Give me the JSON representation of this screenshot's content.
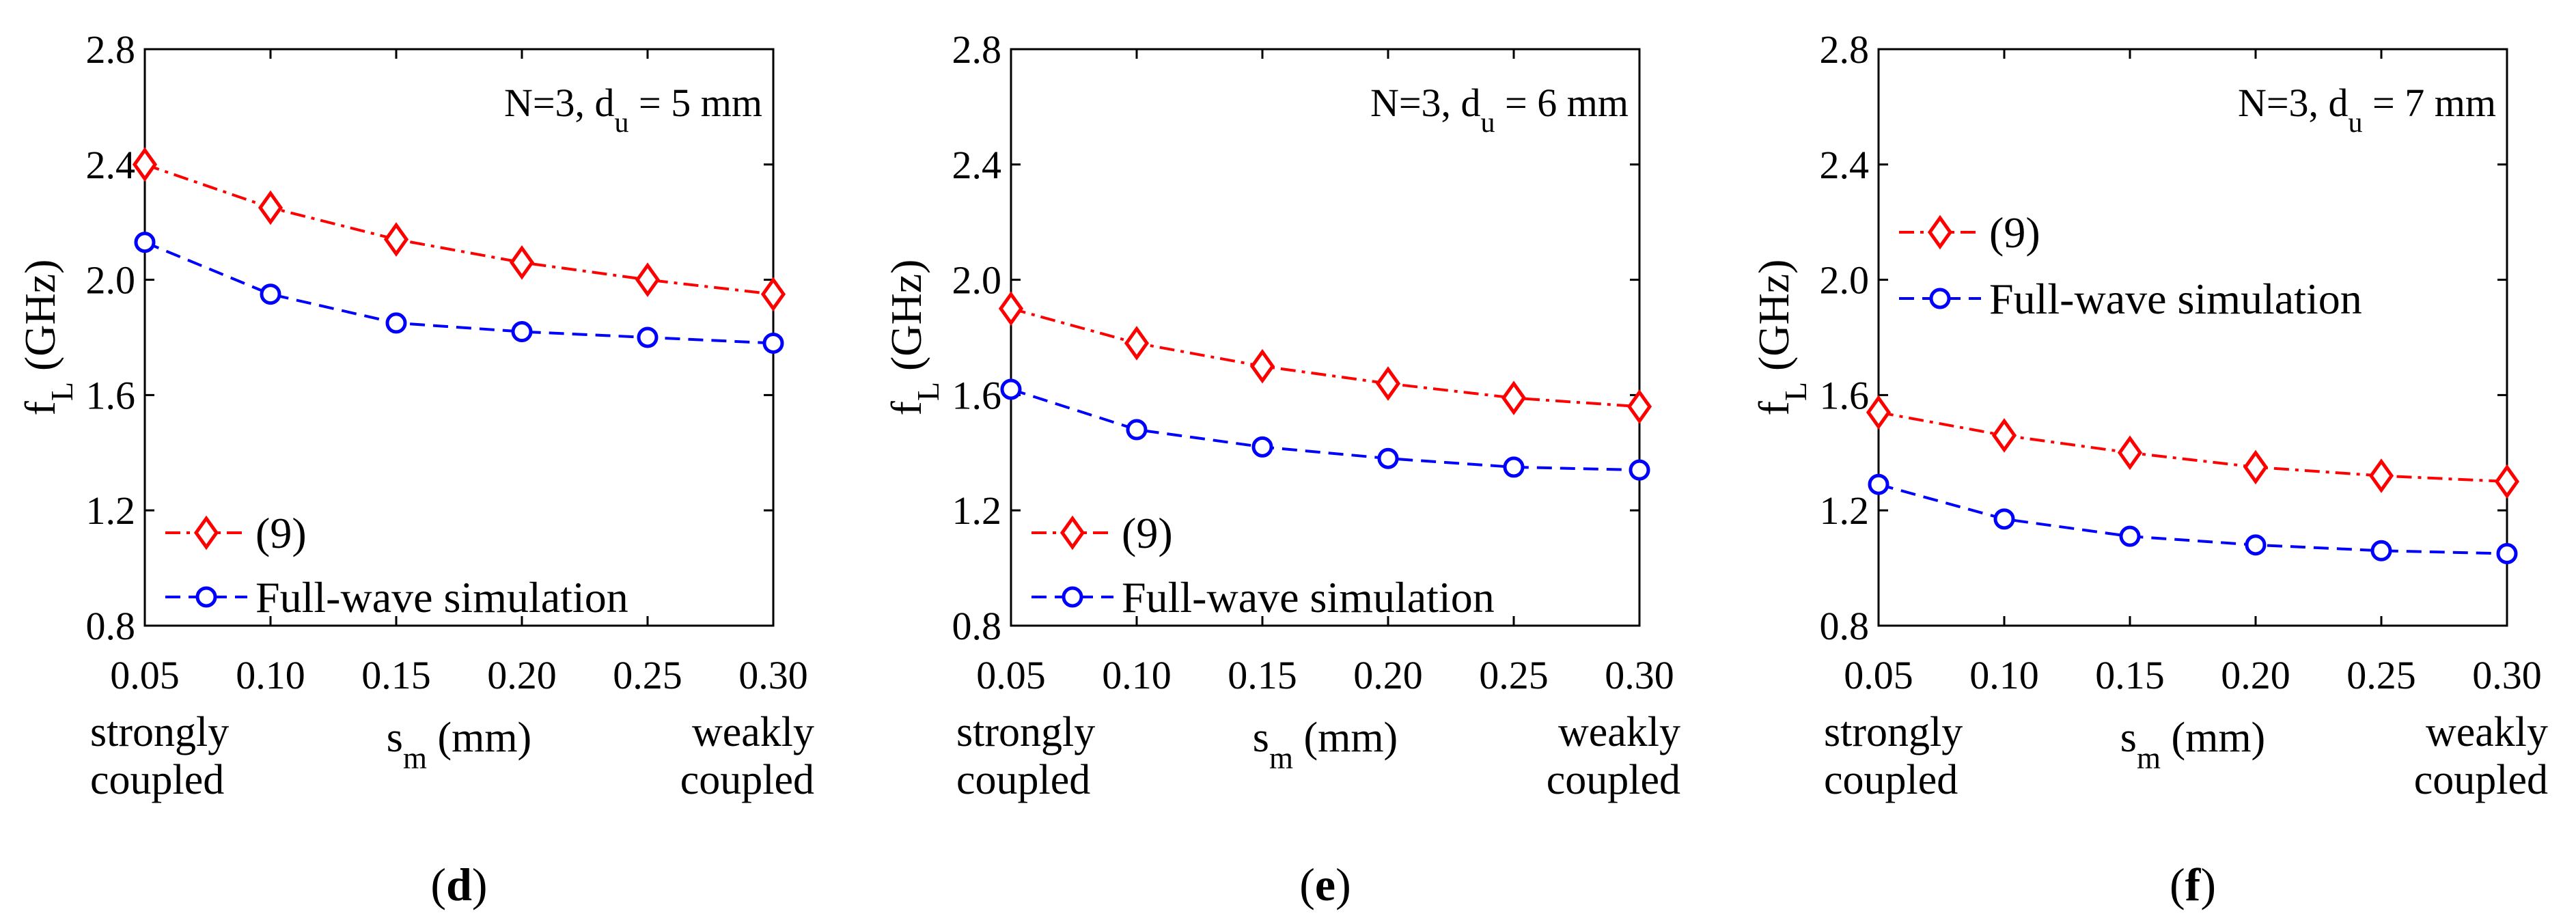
{
  "chart_data": [
    {
      "type": "line",
      "panel_label": "(d)",
      "annotation": {
        "main": "N=3, d",
        "sub": "u",
        "rest": " = 5 mm"
      },
      "ylabel": {
        "main": "f",
        "sub": "L",
        "rest": " (GHz)"
      },
      "xlabel": {
        "main": "s",
        "sub": "m",
        "rest": " (mm)"
      },
      "x_left_note": [
        "strongly",
        "coupled"
      ],
      "x_right_note": [
        "weakly",
        "coupled"
      ],
      "xlim": [
        0.05,
        0.3
      ],
      "ylim": [
        0.8,
        2.8
      ],
      "xticks": [
        "0.05",
        "0.10",
        "0.15",
        "0.20",
        "0.25",
        "0.30"
      ],
      "yticks": [
        "0.8",
        "1.2",
        "1.6",
        "2.0",
        "2.4",
        "2.8"
      ],
      "legend_position": "bottom-left",
      "x": [
        0.05,
        0.1,
        0.15,
        0.2,
        0.25,
        0.3
      ],
      "series": [
        {
          "name": "(9)",
          "color": "#ff0000",
          "marker": "diamond",
          "dash": "dash-dot",
          "values": [
            2.4,
            2.25,
            2.14,
            2.06,
            2.0,
            1.95
          ]
        },
        {
          "name": "Full-wave simulation",
          "color": "#0000ff",
          "marker": "circle",
          "dash": "dashed",
          "values": [
            2.13,
            1.95,
            1.85,
            1.82,
            1.8,
            1.78
          ]
        }
      ]
    },
    {
      "type": "line",
      "panel_label": "(e)",
      "annotation": {
        "main": "N=3, d",
        "sub": "u",
        "rest": " = 6 mm"
      },
      "ylabel": {
        "main": "f",
        "sub": "L",
        "rest": " (GHz)"
      },
      "xlabel": {
        "main": "s",
        "sub": "m",
        "rest": " (mm)"
      },
      "x_left_note": [
        "strongly",
        "coupled"
      ],
      "x_right_note": [
        "weakly",
        "coupled"
      ],
      "xlim": [
        0.05,
        0.3
      ],
      "ylim": [
        0.8,
        2.8
      ],
      "xticks": [
        "0.05",
        "0.10",
        "0.15",
        "0.20",
        "0.25",
        "0.30"
      ],
      "yticks": [
        "0.8",
        "1.2",
        "1.6",
        "2.0",
        "2.4",
        "2.8"
      ],
      "legend_position": "bottom-left",
      "x": [
        0.05,
        0.1,
        0.15,
        0.2,
        0.25,
        0.3
      ],
      "series": [
        {
          "name": "(9)",
          "color": "#ff0000",
          "marker": "diamond",
          "dash": "dash-dot",
          "values": [
            1.9,
            1.78,
            1.7,
            1.64,
            1.59,
            1.56
          ]
        },
        {
          "name": "Full-wave simulation",
          "color": "#0000ff",
          "marker": "circle",
          "dash": "dashed",
          "values": [
            1.62,
            1.48,
            1.42,
            1.38,
            1.35,
            1.34
          ]
        }
      ]
    },
    {
      "type": "line",
      "panel_label": "(f)",
      "annotation": {
        "main": "N=3, d",
        "sub": "u",
        "rest": " = 7 mm"
      },
      "ylabel": {
        "main": "f",
        "sub": "L",
        "rest": " (GHz)"
      },
      "xlabel": {
        "main": "s",
        "sub": "m",
        "rest": " (mm)"
      },
      "x_left_note": [
        "strongly",
        "coupled"
      ],
      "x_right_note": [
        "weakly",
        "coupled"
      ],
      "xlim": [
        0.05,
        0.3
      ],
      "ylim": [
        0.8,
        2.8
      ],
      "xticks": [
        "0.05",
        "0.10",
        "0.15",
        "0.20",
        "0.25",
        "0.30"
      ],
      "yticks": [
        "0.8",
        "1.2",
        "1.6",
        "2.0",
        "2.4",
        "2.8"
      ],
      "legend_position": "top-left",
      "x": [
        0.05,
        0.1,
        0.15,
        0.2,
        0.25,
        0.3
      ],
      "series": [
        {
          "name": "(9)",
          "color": "#ff0000",
          "marker": "diamond",
          "dash": "dash-dot",
          "values": [
            1.54,
            1.46,
            1.4,
            1.35,
            1.32,
            1.3
          ]
        },
        {
          "name": "Full-wave simulation",
          "color": "#0000ff",
          "marker": "circle",
          "dash": "dashed",
          "values": [
            1.29,
            1.17,
            1.11,
            1.08,
            1.06,
            1.05
          ]
        }
      ]
    }
  ]
}
